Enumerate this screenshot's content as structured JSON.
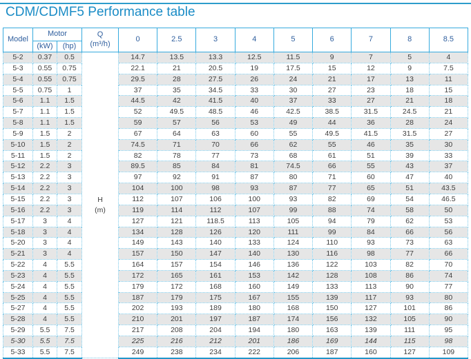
{
  "title": "CDM/CDMF5 Performance table",
  "colors": {
    "title_blue": "#1a8cc6",
    "header_text_blue": "#31609f",
    "model_text_blue": "#3368ad",
    "data_text": "#3d3d3d",
    "solid_border_blue": "#35aade",
    "dotted_border_blue": "#74c6e8",
    "bottom_rule_blue": "#2196c9",
    "shade_gray": "#e6e6e6"
  },
  "table": {
    "header": {
      "model": "Model",
      "motor": "Motor",
      "kw": "(kW)",
      "hp": "(hp)",
      "q_label": "Q",
      "q_unit": "(m³/h)",
      "flow_values": [
        "0",
        "2.5",
        "3",
        "4",
        "5",
        "6",
        "7",
        "8",
        "8.5"
      ],
      "h_label": "H",
      "h_unit": "(m)"
    },
    "rows": [
      {
        "model": "5-2",
        "kw": "0.37",
        "hp": "0.5",
        "heads": [
          "14.7",
          "13.5",
          "13.3",
          "12.5",
          "11.5",
          "9",
          "7",
          "5",
          "4"
        ]
      },
      {
        "model": "5-3",
        "kw": "0.55",
        "hp": "0.75",
        "heads": [
          "22.1",
          "21",
          "20.5",
          "19",
          "17.5",
          "15",
          "12",
          "9",
          "7.5"
        ]
      },
      {
        "model": "5-4",
        "kw": "0.55",
        "hp": "0.75",
        "heads": [
          "29.5",
          "28",
          "27.5",
          "26",
          "24",
          "21",
          "17",
          "13",
          "11"
        ]
      },
      {
        "model": "5-5",
        "kw": "0.75",
        "hp": "1",
        "heads": [
          "37",
          "35",
          "34.5",
          "33",
          "30",
          "27",
          "23",
          "18",
          "15"
        ]
      },
      {
        "model": "5-6",
        "kw": "1.1",
        "hp": "1.5",
        "heads": [
          "44.5",
          "42",
          "41.5",
          "40",
          "37",
          "33",
          "27",
          "21",
          "18"
        ]
      },
      {
        "model": "5-7",
        "kw": "1.1",
        "hp": "1.5",
        "heads": [
          "52",
          "49.5",
          "48.5",
          "46",
          "42.5",
          "38.5",
          "31.5",
          "24.5",
          "21"
        ]
      },
      {
        "model": "5-8",
        "kw": "1.1",
        "hp": "1.5",
        "heads": [
          "59",
          "57",
          "56",
          "53",
          "49",
          "44",
          "36",
          "28",
          "24"
        ]
      },
      {
        "model": "5-9",
        "kw": "1.5",
        "hp": "2",
        "heads": [
          "67",
          "64",
          "63",
          "60",
          "55",
          "49.5",
          "41.5",
          "31.5",
          "27"
        ]
      },
      {
        "model": "5-10",
        "kw": "1.5",
        "hp": "2",
        "heads": [
          "74.5",
          "71",
          "70",
          "66",
          "62",
          "55",
          "46",
          "35",
          "30"
        ]
      },
      {
        "model": "5-11",
        "kw": "1.5",
        "hp": "2",
        "heads": [
          "82",
          "78",
          "77",
          "73",
          "68",
          "61",
          "51",
          "39",
          "33"
        ]
      },
      {
        "model": "5-12",
        "kw": "2.2",
        "hp": "3",
        "heads": [
          "89.5",
          "85",
          "84",
          "81",
          "74.5",
          "66",
          "55",
          "43",
          "37"
        ]
      },
      {
        "model": "5-13",
        "kw": "2.2",
        "hp": "3",
        "heads": [
          "97",
          "92",
          "91",
          "87",
          "80",
          "71",
          "60",
          "47",
          "40"
        ]
      },
      {
        "model": "5-14",
        "kw": "2.2",
        "hp": "3",
        "heads": [
          "104",
          "100",
          "98",
          "93",
          "87",
          "77",
          "65",
          "51",
          "43.5"
        ]
      },
      {
        "model": "5-15",
        "kw": "2.2",
        "hp": "3",
        "heads": [
          "112",
          "107",
          "106",
          "100",
          "93",
          "82",
          "69",
          "54",
          "46.5"
        ]
      },
      {
        "model": "5-16",
        "kw": "2.2",
        "hp": "3",
        "heads": [
          "119",
          "114",
          "112",
          "107",
          "99",
          "88",
          "74",
          "58",
          "50"
        ]
      },
      {
        "model": "5-17",
        "kw": "3",
        "hp": "4",
        "heads": [
          "127",
          "121",
          "118.5",
          "113",
          "105",
          "94",
          "79",
          "62",
          "53"
        ]
      },
      {
        "model": "5-18",
        "kw": "3",
        "hp": "4",
        "heads": [
          "134",
          "128",
          "126",
          "120",
          "111",
          "99",
          "84",
          "66",
          "56"
        ]
      },
      {
        "model": "5-20",
        "kw": "3",
        "hp": "4",
        "heads": [
          "149",
          "143",
          "140",
          "133",
          "124",
          "110",
          "93",
          "73",
          "63"
        ]
      },
      {
        "model": "5-21",
        "kw": "3",
        "hp": "4",
        "heads": [
          "157",
          "150",
          "147",
          "140",
          "130",
          "116",
          "98",
          "77",
          "66"
        ]
      },
      {
        "model": "5-22",
        "kw": "4",
        "hp": "5.5",
        "heads": [
          "164",
          "157",
          "154",
          "146",
          "136",
          "122",
          "103",
          "82",
          "70"
        ]
      },
      {
        "model": "5-23",
        "kw": "4",
        "hp": "5.5",
        "heads": [
          "172",
          "165",
          "161",
          "153",
          "142",
          "128",
          "108",
          "86",
          "74"
        ]
      },
      {
        "model": "5-24",
        "kw": "4",
        "hp": "5.5",
        "heads": [
          "179",
          "172",
          "168",
          "160",
          "149",
          "133",
          "113",
          "90",
          "77"
        ]
      },
      {
        "model": "5-25",
        "kw": "4",
        "hp": "5.5",
        "heads": [
          "187",
          "179",
          "175",
          "167",
          "155",
          "139",
          "117",
          "93",
          "80"
        ]
      },
      {
        "model": "5-27",
        "kw": "4",
        "hp": "5.5",
        "heads": [
          "202",
          "193",
          "189",
          "180",
          "168",
          "150",
          "127",
          "101",
          "86"
        ]
      },
      {
        "model": "5-28",
        "kw": "4",
        "hp": "5.5",
        "heads": [
          "210",
          "201",
          "197",
          "187",
          "174",
          "156",
          "132",
          "105",
          "90"
        ]
      },
      {
        "model": "5-29",
        "kw": "5.5",
        "hp": "7.5",
        "heads": [
          "217",
          "208",
          "204",
          "194",
          "180",
          "163",
          "139",
          "111",
          "95"
        ]
      },
      {
        "model": "5-30",
        "kw": "5.5",
        "hp": "7.5",
        "italic": true,
        "heads": [
          "225",
          "216",
          "212",
          "201",
          "186",
          "169",
          "144",
          "115",
          "98"
        ]
      },
      {
        "model": "5-33",
        "kw": "5.5",
        "hp": "7.5",
        "heads": [
          "249",
          "238",
          "234",
          "222",
          "206",
          "187",
          "160",
          "127",
          "109"
        ]
      }
    ]
  }
}
